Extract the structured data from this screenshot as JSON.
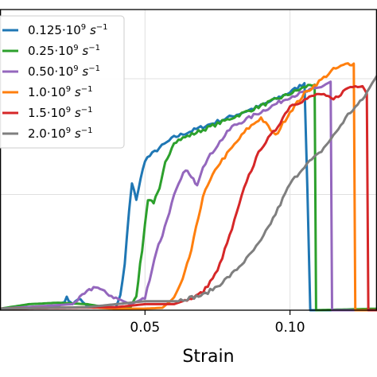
{
  "chart_data": {
    "type": "line",
    "xlabel": "Strain",
    "ylabel": "",
    "title": "",
    "xlim": [
      0.0,
      0.13
    ],
    "ylim": [
      0.0,
      1.0
    ],
    "xticks": [
      0.05,
      0.1
    ],
    "xtick_labels": [
      "0.05",
      "0.10"
    ],
    "yticks": [
      0.385,
      0.77
    ],
    "grid": true,
    "legend_position": "top-left",
    "series": [
      {
        "name": "0.125·10⁹ s⁻¹",
        "label_base": "0.125·10",
        "label_exp1": "9",
        "label_unit": " s",
        "label_exp2": "−1",
        "color": "#1f77b4",
        "x": [
          0.0,
          0.02,
          0.023,
          0.025,
          0.027,
          0.03,
          0.035,
          0.04,
          0.0415,
          0.043,
          0.0445,
          0.0455,
          0.047,
          0.05,
          0.055,
          0.06,
          0.07,
          0.08,
          0.09,
          0.1,
          0.105,
          0.106,
          0.107,
          0.13
        ],
        "y": [
          0.005,
          0.01,
          0.04,
          0.02,
          0.04,
          0.015,
          0.01,
          0.01,
          0.05,
          0.15,
          0.33,
          0.42,
          0.37,
          0.5,
          0.54,
          0.575,
          0.61,
          0.645,
          0.68,
          0.725,
          0.755,
          0.4,
          0.0,
          0.0
        ]
      },
      {
        "name": "0.25·10⁹ s⁻¹",
        "label_base": "0.25·10",
        "label_exp1": "9",
        "label_unit": " s",
        "label_exp2": "−1",
        "color": "#2ca02c",
        "x": [
          0.0,
          0.01,
          0.02,
          0.03,
          0.04,
          0.045,
          0.047,
          0.049,
          0.051,
          0.053,
          0.055,
          0.057,
          0.06,
          0.07,
          0.08,
          0.09,
          0.1,
          0.107,
          0.1085,
          0.109,
          0.13
        ],
        "y": [
          0.005,
          0.02,
          0.025,
          0.02,
          0.005,
          0.01,
          0.05,
          0.2,
          0.37,
          0.36,
          0.4,
          0.49,
          0.56,
          0.6,
          0.64,
          0.68,
          0.72,
          0.75,
          0.75,
          0.0,
          0.005
        ]
      },
      {
        "name": "0.50·10⁹ s⁻¹",
        "label_base": "0.50·10",
        "label_exp1": "9",
        "label_unit": " s",
        "label_exp2": "−1",
        "color": "#9467bd",
        "x": [
          0.0,
          0.025,
          0.03,
          0.033,
          0.036,
          0.04,
          0.045,
          0.05,
          0.054,
          0.056,
          0.06,
          0.064,
          0.066,
          0.068,
          0.07,
          0.075,
          0.08,
          0.09,
          0.1,
          0.11,
          0.114,
          0.1145,
          0.13
        ],
        "y": [
          0.005,
          0.02,
          0.06,
          0.08,
          0.06,
          0.04,
          0.02,
          0.04,
          0.2,
          0.25,
          0.38,
          0.47,
          0.44,
          0.42,
          0.48,
          0.55,
          0.61,
          0.66,
          0.71,
          0.74,
          0.76,
          0.0,
          0.0
        ]
      },
      {
        "name": "1.0·10⁹ s⁻¹",
        "label_base": "1.0·10",
        "label_exp1": "9",
        "label_unit": " s",
        "label_exp2": "−1",
        "color": "#ff7f0e",
        "x": [
          0.0,
          0.03,
          0.04,
          0.05,
          0.056,
          0.06,
          0.063,
          0.066,
          0.07,
          0.075,
          0.08,
          0.085,
          0.09,
          0.095,
          0.1,
          0.105,
          0.11,
          0.115,
          0.12,
          0.122,
          0.1225,
          0.13
        ],
        "y": [
          0.005,
          0.01,
          0.005,
          0.005,
          0.008,
          0.04,
          0.1,
          0.2,
          0.38,
          0.48,
          0.54,
          0.6,
          0.64,
          0.58,
          0.66,
          0.72,
          0.76,
          0.8,
          0.82,
          0.82,
          0.0,
          0.0
        ]
      },
      {
        "name": "1.5·10⁹ s⁻¹",
        "label_base": "1.5·10",
        "label_exp1": "9",
        "label_unit": " s",
        "label_exp2": "−1",
        "color": "#d62728",
        "x": [
          0.0,
          0.04,
          0.05,
          0.06,
          0.066,
          0.07,
          0.075,
          0.08,
          0.085,
          0.09,
          0.095,
          0.1,
          0.105,
          0.11,
          0.115,
          0.12,
          0.125,
          0.1265,
          0.127,
          0.13
        ],
        "y": [
          0.005,
          0.01,
          0.02,
          0.02,
          0.04,
          0.06,
          0.13,
          0.27,
          0.43,
          0.54,
          0.6,
          0.68,
          0.7,
          0.72,
          0.7,
          0.74,
          0.75,
          0.72,
          0.0,
          0.0
        ]
      },
      {
        "name": "2.0·10⁹ s⁻¹",
        "label_base": "2.0·10",
        "label_exp1": "9",
        "label_unit": " s",
        "label_exp2": "−1",
        "color": "#7f7f7f",
        "x": [
          0.0,
          0.03,
          0.04,
          0.05,
          0.06,
          0.07,
          0.075,
          0.08,
          0.085,
          0.09,
          0.095,
          0.1,
          0.105,
          0.11,
          0.115,
          0.12,
          0.125,
          0.13
        ],
        "y": [
          0.005,
          0.01,
          0.02,
          0.03,
          0.03,
          0.05,
          0.08,
          0.12,
          0.17,
          0.23,
          0.32,
          0.42,
          0.48,
          0.52,
          0.58,
          0.65,
          0.7,
          0.78
        ]
      }
    ]
  }
}
